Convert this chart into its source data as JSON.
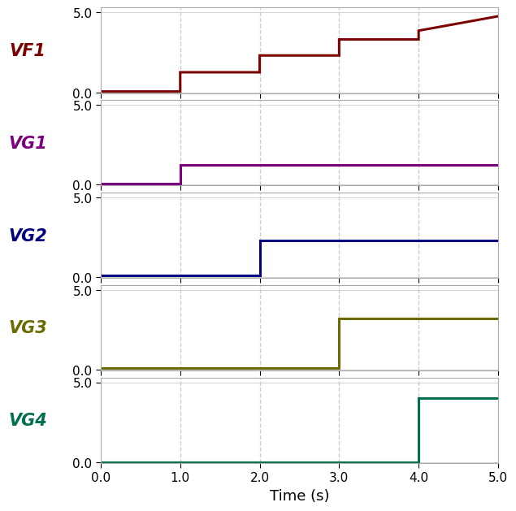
{
  "xlabel": "Time (s)",
  "xlim": [
    0.0,
    5.0
  ],
  "ylim": [
    -0.05,
    5.3
  ],
  "yticks": [
    0.0,
    5.0
  ],
  "xticks": [
    0.0,
    1.0,
    2.0,
    3.0,
    4.0,
    5.0
  ],
  "vlines": [
    1.0,
    2.0,
    3.0,
    4.0
  ],
  "channels": [
    {
      "label": "VF1",
      "color": "#7B0000",
      "segments": [
        [
          0.0,
          0.05
        ],
        [
          1.0,
          0.05
        ],
        [
          1.0,
          1.25
        ],
        [
          2.0,
          1.25
        ],
        [
          2.0,
          2.3
        ],
        [
          3.0,
          2.3
        ],
        [
          3.0,
          3.3
        ],
        [
          4.0,
          3.3
        ],
        [
          4.0,
          3.85
        ],
        [
          5.0,
          4.75
        ]
      ]
    },
    {
      "label": "VG1",
      "color": "#7B0080",
      "segments": [
        [
          0.0,
          0.05
        ],
        [
          1.0,
          0.05
        ],
        [
          1.0,
          1.25
        ],
        [
          5.0,
          1.25
        ]
      ]
    },
    {
      "label": "VG2",
      "color": "#000080",
      "segments": [
        [
          0.0,
          0.1
        ],
        [
          2.0,
          0.1
        ],
        [
          2.0,
          2.3
        ],
        [
          5.0,
          2.3
        ]
      ]
    },
    {
      "label": "VG3",
      "color": "#6B6B00",
      "segments": [
        [
          0.0,
          0.1
        ],
        [
          3.0,
          0.1
        ],
        [
          3.0,
          3.2
        ],
        [
          5.0,
          3.2
        ]
      ]
    },
    {
      "label": "VG4",
      "color": "#007050",
      "segments": [
        [
          0.0,
          0.0
        ],
        [
          4.0,
          0.0
        ],
        [
          4.0,
          4.0
        ],
        [
          5.0,
          4.0
        ]
      ]
    }
  ],
  "label_fontsize": 15,
  "tick_fontsize": 11,
  "xlabel_fontsize": 13,
  "linewidth": 2.2,
  "background_color": "#ffffff",
  "grid_color": "#cccccc",
  "spine_color": "#aaaaaa"
}
